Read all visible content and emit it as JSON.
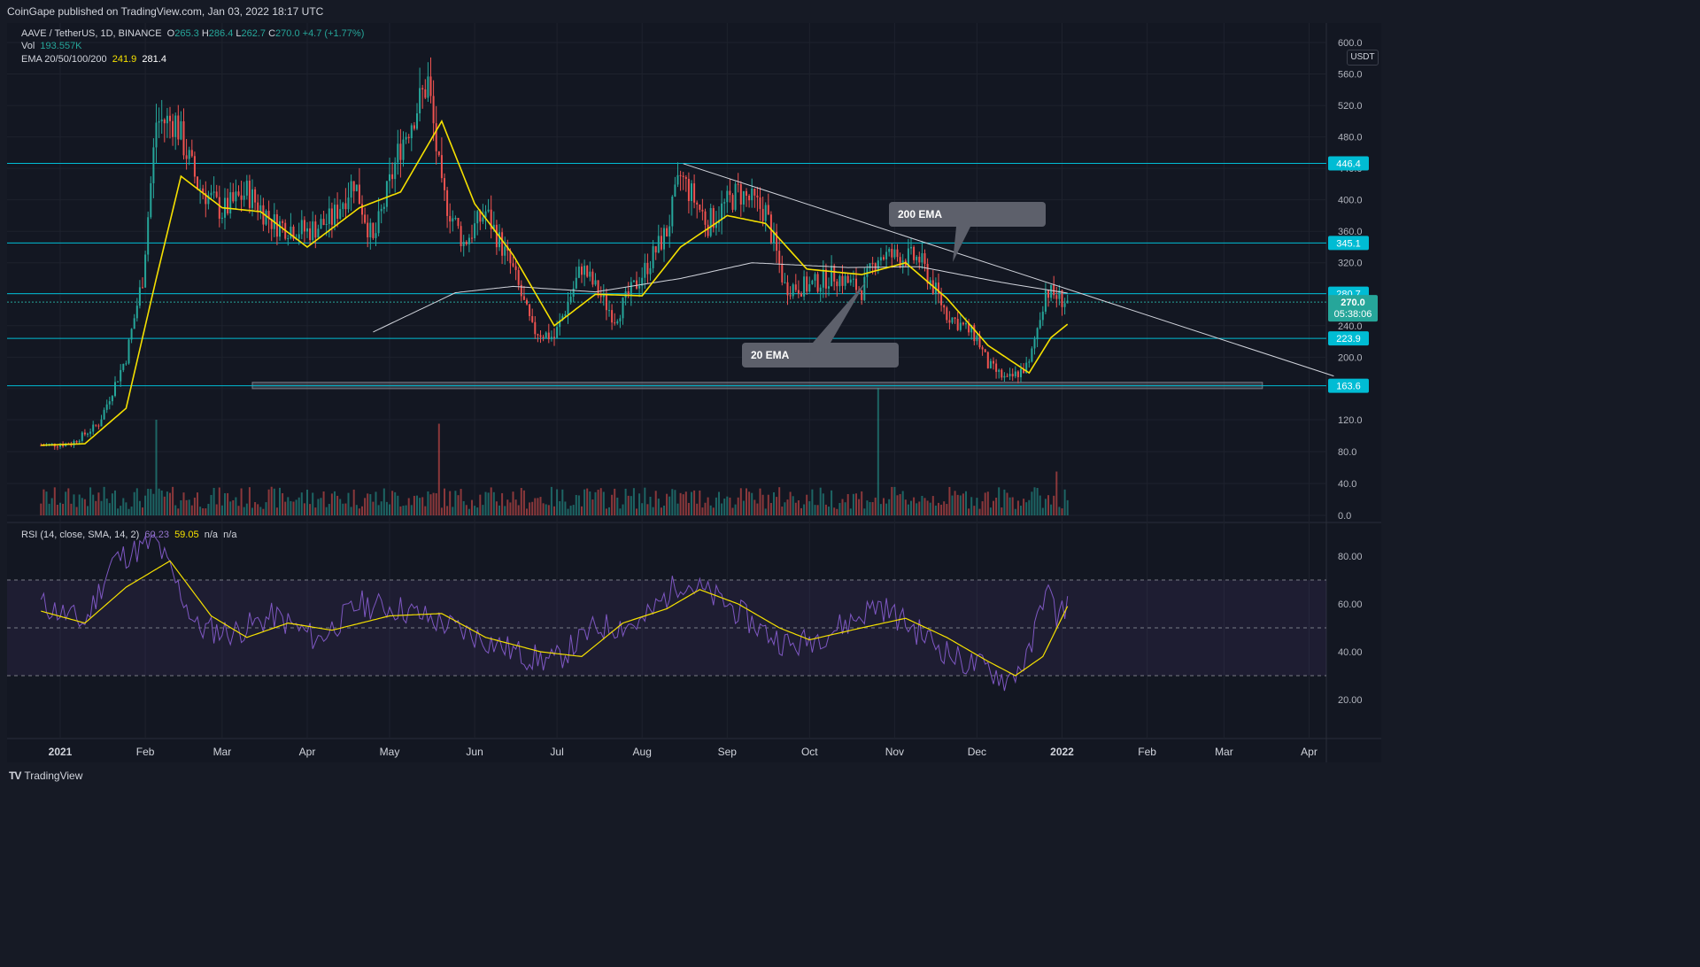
{
  "header": {
    "published": "CoinGape published on TradingView.com, Jan 03, 2022 18:17 UTC"
  },
  "legend": {
    "symbol": "AAVE / TetherUS, 1D, BINANCE",
    "o_label": "O",
    "o": "265.3",
    "h_label": "H",
    "h": "286.4",
    "l_label": "L",
    "l": "262.7",
    "c_label": "C",
    "c": "270.0",
    "change": "+4.7 (+1.77%)",
    "vol_label": "Vol",
    "vol": "193.557K",
    "ema_label": "EMA 20/50/100/200",
    "ema1": "241.9",
    "ema2": "281.4",
    "rsi_label": "RSI (14, close, SMA, 14, 2)",
    "rsi1": "60.23",
    "rsi2": "59.05",
    "rsi3": "n/a",
    "rsi4": "n/a"
  },
  "currency_badge": "USDT",
  "annotations": {
    "ema200": "200 EMA",
    "ema20": "20 EMA"
  },
  "footer": {
    "brand": "TradingView"
  },
  "colors": {
    "background": "#131722",
    "bull": "#26a69a",
    "bear": "#ef5350",
    "ema20": "#f5e000",
    "ema200": "#d1d4dc",
    "level": "#00bcd4",
    "rsi": "#7e57c2",
    "rsi_ma": "#f5e000"
  },
  "chart_data": [
    {
      "type": "candlestick",
      "title": "AAVE / TetherUS, 1D, BINANCE",
      "x_ticks": [
        "2021",
        "Feb",
        "Mar",
        "Apr",
        "May",
        "Jun",
        "Jul",
        "Aug",
        "Sep",
        "Oct",
        "Nov",
        "Dec",
        "2022",
        "Feb",
        "Mar",
        "Apr"
      ],
      "y_ticks": [
        "600.0",
        "560.0",
        "520.0",
        "480.0",
        "440.0",
        "400.0",
        "360.0",
        "320.0",
        "280.0",
        "240.0",
        "200.0",
        "160.0",
        "120.0",
        "80.0",
        "40.0",
        "0.0"
      ],
      "ylim": [
        0,
        625
      ],
      "price_path": [
        [
          "2020-12-25",
          88
        ],
        [
          "2021-01-05",
          90
        ],
        [
          "2021-01-15",
          115
        ],
        [
          "2021-01-25",
          200
        ],
        [
          "2021-01-31",
          300
        ],
        [
          "2021-02-05",
          500
        ],
        [
          "2021-02-12",
          500
        ],
        [
          "2021-02-20",
          420
        ],
        [
          "2021-03-01",
          385
        ],
        [
          "2021-03-10",
          410
        ],
        [
          "2021-03-20",
          370
        ],
        [
          "2021-04-01",
          360
        ],
        [
          "2021-04-10",
          375
        ],
        [
          "2021-04-18",
          425
        ],
        [
          "2021-04-25",
          345
        ],
        [
          "2021-05-05",
          470
        ],
        [
          "2021-05-15",
          550
        ],
        [
          "2021-05-20",
          410
        ],
        [
          "2021-05-28",
          345
        ],
        [
          "2021-06-05",
          385
        ],
        [
          "2021-06-15",
          310
        ],
        [
          "2021-06-22",
          235
        ],
        [
          "2021-06-30",
          225
        ],
        [
          "2021-07-10",
          315
        ],
        [
          "2021-07-22",
          250
        ],
        [
          "2021-08-01",
          305
        ],
        [
          "2021-08-10",
          360
        ],
        [
          "2021-08-15",
          430
        ],
        [
          "2021-08-25",
          370
        ],
        [
          "2021-09-05",
          410
        ],
        [
          "2021-09-15",
          385
        ],
        [
          "2021-09-22",
          290
        ],
        [
          "2021-10-01",
          290
        ],
        [
          "2021-10-10",
          305
        ],
        [
          "2021-10-20",
          285
        ],
        [
          "2021-10-26",
          330
        ],
        [
          "2021-11-10",
          325
        ],
        [
          "2021-11-20",
          255
        ],
        [
          "2021-12-01",
          225
        ],
        [
          "2021-12-05",
          190
        ],
        [
          "2021-12-12",
          170
        ],
        [
          "2021-12-20",
          190
        ],
        [
          "2021-12-26",
          285
        ],
        [
          "2022-01-03",
          270
        ]
      ],
      "ema20": [
        [
          "2020-12-25",
          88
        ],
        [
          "2021-01-10",
          90
        ],
        [
          "2021-01-25",
          135
        ],
        [
          "2021-02-05",
          300
        ],
        [
          "2021-02-14",
          430
        ],
        [
          "2021-03-01",
          390
        ],
        [
          "2021-03-15",
          385
        ],
        [
          "2021-04-01",
          340
        ],
        [
          "2021-04-20",
          390
        ],
        [
          "2021-05-05",
          410
        ],
        [
          "2021-05-20",
          500
        ],
        [
          "2021-06-01",
          395
        ],
        [
          "2021-06-15",
          330
        ],
        [
          "2021-06-30",
          240
        ],
        [
          "2021-07-15",
          280
        ],
        [
          "2021-08-01",
          278
        ],
        [
          "2021-08-15",
          340
        ],
        [
          "2021-09-01",
          380
        ],
        [
          "2021-09-15",
          370
        ],
        [
          "2021-09-30",
          312
        ],
        [
          "2021-10-20",
          305
        ],
        [
          "2021-11-05",
          320
        ],
        [
          "2021-11-20",
          275
        ],
        [
          "2021-12-05",
          215
        ],
        [
          "2021-12-20",
          180
        ],
        [
          "2021-12-28",
          225
        ],
        [
          "2022-01-03",
          241.9
        ]
      ],
      "ema200": [
        [
          "2021-04-25",
          232
        ],
        [
          "2021-05-25",
          282
        ],
        [
          "2021-06-15",
          290
        ],
        [
          "2021-07-15",
          283
        ],
        [
          "2021-08-15",
          300
        ],
        [
          "2021-09-10",
          320
        ],
        [
          "2021-10-15",
          314
        ],
        [
          "2021-11-10",
          315
        ],
        [
          "2021-12-10",
          295
        ],
        [
          "2022-01-03",
          281.4
        ]
      ],
      "horizontal_levels": [
        446.4,
        345.1,
        280.7,
        223.9,
        163.6
      ],
      "level_labels": [
        "446.4",
        "345.1",
        "280.7",
        "223.9",
        "163.6"
      ],
      "current_price": "270.0",
      "countdown": "05:38:06",
      "descending_trendline": [
        [
          "2021-08-16",
          446
        ],
        [
          "2022-04-10",
          176
        ]
      ],
      "support_zone": [
        168,
        160
      ]
    },
    {
      "type": "bar",
      "title": "Vol",
      "y_ticks": [
        "120.0",
        "80.0",
        "40.0",
        "0.0"
      ],
      "ylim": [
        0,
        140
      ],
      "last_value": "193.557K",
      "peaks": [
        [
          "2021-02-05",
          120
        ],
        [
          "2021-05-19",
          115
        ],
        [
          "2021-10-26",
          160
        ],
        [
          "2021-12-30",
          55
        ]
      ]
    },
    {
      "type": "line",
      "title": "RSI (14, close, SMA, 14, 2)",
      "y_ticks": [
        "80.00",
        "60.00",
        "40.00",
        "20.00"
      ],
      "ylim": [
        0,
        100
      ],
      "bands": [
        70,
        50,
        30
      ],
      "rsi": [
        [
          "2020-12-25",
          60
        ],
        [
          "2021-01-10",
          52
        ],
        [
          "2021-01-20",
          78
        ],
        [
          "2021-02-05",
          86
        ],
        [
          "2021-02-20",
          50
        ],
        [
          "2021-03-05",
          48
        ],
        [
          "2021-03-20",
          55
        ],
        [
          "2021-04-05",
          45
        ],
        [
          "2021-04-20",
          60
        ],
        [
          "2021-05-05",
          58
        ],
        [
          "2021-05-20",
          52
        ],
        [
          "2021-06-05",
          45
        ],
        [
          "2021-06-20",
          38
        ],
        [
          "2021-06-30",
          36
        ],
        [
          "2021-07-15",
          50
        ],
        [
          "2021-08-01",
          52
        ],
        [
          "2021-08-15",
          70
        ],
        [
          "2021-09-01",
          60
        ],
        [
          "2021-09-15",
          48
        ],
        [
          "2021-09-25",
          42
        ],
        [
          "2021-10-15",
          52
        ],
        [
          "2021-10-26",
          60
        ],
        [
          "2021-11-10",
          48
        ],
        [
          "2021-11-25",
          36
        ],
        [
          "2021-12-05",
          33
        ],
        [
          "2021-12-12",
          28
        ],
        [
          "2021-12-20",
          38
        ],
        [
          "2021-12-26",
          68
        ],
        [
          "2021-12-30",
          55
        ],
        [
          "2022-01-03",
          60.23
        ]
      ],
      "rsi_ma": [
        [
          "2020-12-25",
          57
        ],
        [
          "2021-01-10",
          52
        ],
        [
          "2021-01-25",
          67
        ],
        [
          "2021-02-10",
          78
        ],
        [
          "2021-02-25",
          55
        ],
        [
          "2021-03-10",
          46
        ],
        [
          "2021-03-25",
          52
        ],
        [
          "2021-04-10",
          49
        ],
        [
          "2021-05-01",
          55
        ],
        [
          "2021-05-20",
          56
        ],
        [
          "2021-06-05",
          46
        ],
        [
          "2021-06-25",
          40
        ],
        [
          "2021-07-10",
          38
        ],
        [
          "2021-07-25",
          52
        ],
        [
          "2021-08-10",
          58
        ],
        [
          "2021-08-22",
          66
        ],
        [
          "2021-09-05",
          60
        ],
        [
          "2021-09-20",
          50
        ],
        [
          "2021-10-01",
          45
        ],
        [
          "2021-10-20",
          50
        ],
        [
          "2021-11-05",
          54
        ],
        [
          "2021-11-20",
          46
        ],
        [
          "2021-12-05",
          36
        ],
        [
          "2021-12-15",
          30
        ],
        [
          "2021-12-25",
          38
        ],
        [
          "2022-01-03",
          59.05
        ]
      ]
    }
  ]
}
